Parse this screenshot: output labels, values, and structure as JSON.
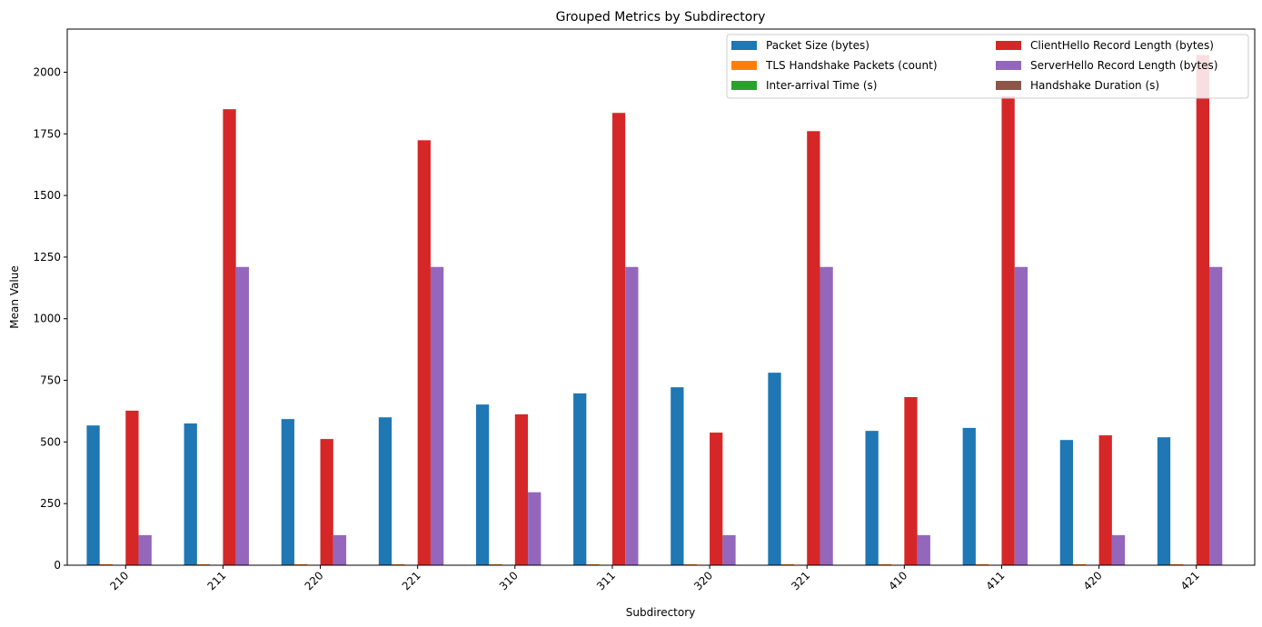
{
  "chart_data": {
    "type": "bar",
    "title": "Grouped Metrics by Subdirectory",
    "xlabel": "Subdirectory",
    "ylabel": "Mean Value",
    "ylim": [
      0,
      2175
    ],
    "yticks": [
      0,
      250,
      500,
      750,
      1000,
      1250,
      1500,
      1750,
      2000
    ],
    "grid": false,
    "legend_position": "top-right",
    "categories": [
      "210",
      "211",
      "220",
      "221",
      "310",
      "311",
      "320",
      "321",
      "410",
      "411",
      "420",
      "421"
    ],
    "series": [
      {
        "name": "Packet Size (bytes)",
        "color": "#1f77b4",
        "values": [
          567,
          575,
          593,
          600,
          652,
          697,
          722,
          781,
          545,
          557,
          508,
          519
        ]
      },
      {
        "name": "TLS Handshake Packets (count)",
        "color": "#ff7f0e",
        "values": [
          4,
          4,
          4,
          4,
          4,
          4,
          4,
          4,
          4,
          4,
          4,
          4
        ]
      },
      {
        "name": "Inter-arrival Time (s)",
        "color": "#2ca02c",
        "values": [
          0.02,
          0.02,
          0.02,
          0.02,
          0.02,
          0.02,
          0.02,
          0.02,
          0.02,
          0.02,
          0.02,
          0.02
        ]
      },
      {
        "name": "ClientHello Record Length (bytes)",
        "color": "#d62728",
        "values": [
          627,
          1850,
          512,
          1724,
          612,
          1835,
          538,
          1761,
          682,
          1903,
          527,
          2070
        ]
      },
      {
        "name": "ServerHello Record Length (bytes)",
        "color": "#9467bd",
        "values": [
          122,
          1210,
          122,
          1210,
          296,
          1210,
          122,
          1210,
          122,
          1210,
          122,
          1210
        ]
      },
      {
        "name": "Handshake Duration (s)",
        "color": "#8c564b",
        "values": [
          0.1,
          0.1,
          0.1,
          0.1,
          0.1,
          0.1,
          0.1,
          0.1,
          0.1,
          0.1,
          0.1,
          0.1
        ]
      }
    ]
  }
}
